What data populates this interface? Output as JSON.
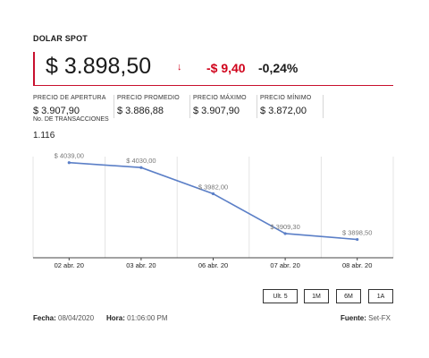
{
  "header": {
    "title": "DOLAR SPOT",
    "price": "$ 3.898,50",
    "arrow": "↓",
    "change": "-$ 9,40",
    "change_pct": "-0,24%"
  },
  "stats": [
    {
      "label": "PRECIO DE APERTURA",
      "value": "$ 3.907,90"
    },
    {
      "label": "PRECIO PROMEDIO",
      "value": "$ 3.886,88"
    },
    {
      "label": "PRECIO MÁXIMO",
      "value": "$ 3.907,90"
    },
    {
      "label": "PRECIO MÍNIMO",
      "value": "$ 3.872,00"
    }
  ],
  "transactions": {
    "label": "No. DE TRANSACCIONES",
    "value": "1.116"
  },
  "chart_data": {
    "type": "line",
    "categories": [
      "02 abr. 20",
      "03 abr. 20",
      "06 abr. 20",
      "07 abr. 20",
      "08 abr. 20"
    ],
    "values": [
      4039.0,
      4030.0,
      3982.0,
      3909.3,
      3898.5
    ],
    "data_labels": [
      "$ 4039,00",
      "$ 4030,00",
      "$ 3982,00",
      "$ 3909,30",
      "$ 3898,50"
    ],
    "ylim": [
      3865,
      4050
    ],
    "grid": "vertical",
    "line_color": "#5b7fc7"
  },
  "ranges": [
    {
      "label": "Ult. 5",
      "active": true
    },
    {
      "label": "1M",
      "active": false
    },
    {
      "label": "6M",
      "active": false
    },
    {
      "label": "1A",
      "active": false
    }
  ],
  "footer": {
    "date_label": "Fecha:",
    "date_value": "08/04/2020",
    "time_label": "Hora:",
    "time_value": "01:06:00 PM",
    "source_label": "Fuente:",
    "source_value": "Set-FX"
  }
}
